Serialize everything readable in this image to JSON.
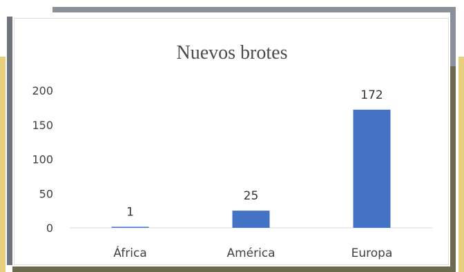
{
  "chart_data": {
    "type": "bar",
    "title": "Nuevos brotes",
    "categories": [
      "África",
      "América",
      "Europa"
    ],
    "values": [
      1,
      25,
      172
    ],
    "ylim": [
      0,
      200
    ],
    "yticks": [
      "0",
      "50",
      "100",
      "150",
      "200"
    ],
    "data_labels": [
      "1",
      "25",
      "172"
    ],
    "grid": false,
    "colors": {
      "bar": "#4472c4",
      "axis": "#d9d9d9"
    }
  }
}
